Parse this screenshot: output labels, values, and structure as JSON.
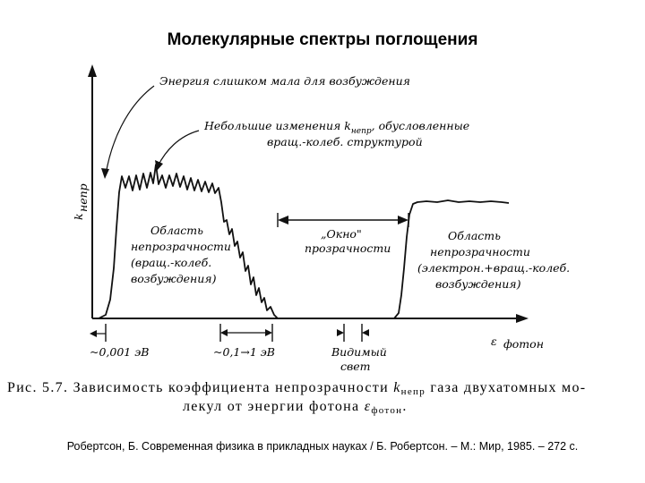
{
  "slide": {
    "title": "Молекулярные спектры поглощения",
    "reference": "Робертсон, Б. Современная физика в прикладных науках / Б. Робертсон. – М.: Мир, 1985. – 272 с."
  },
  "figure": {
    "y_axis_label": "k",
    "y_axis_sub": "непр",
    "x_axis_label": "ε",
    "x_axis_sub": "фотон",
    "annotations": {
      "low_energy_1": "Энергия слишком мала для возбуждения",
      "small_changes_1": "Небольшие изменения k",
      "small_changes_sub": "непр",
      "small_changes_2": ", обусловленные",
      "small_changes_3": "вращ.-колеб. структурой",
      "window_1": "„Окно\"",
      "window_2": "прозрачности",
      "region_left_1": "Область",
      "region_left_2": "непрозрачности",
      "region_left_3": "(вращ.-колеб.",
      "region_left_4": "возбуждения)",
      "region_right_1": "Область",
      "region_right_2": "непрозрачности",
      "region_right_3": "(электрон.+вращ.-колеб.",
      "region_right_4": "возбуждения)"
    },
    "axis_marks": {
      "mark_1": "~0,001 эВ",
      "mark_2": "~0,1→1 эВ",
      "mark_3_line1": "Видимый",
      "mark_3_line2": "свет"
    },
    "caption": {
      "prefix": "Рис. 5.7.",
      "text_1": " Зависимость коэффициента непрозрачности ",
      "k_symbol": "k",
      "k_sub": "непр",
      "text_2": " газа двухатомных мо-",
      "line2": "лекул от энергии фотона ",
      "e_symbol": "ε",
      "e_sub": "фотон",
      "end": "."
    }
  }
}
